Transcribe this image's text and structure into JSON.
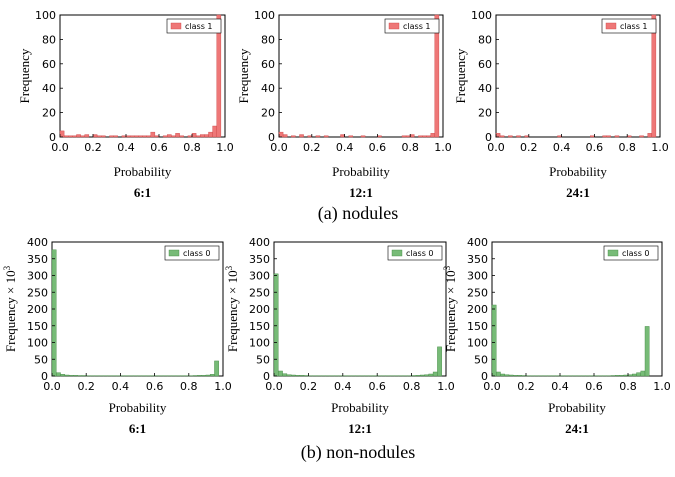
{
  "captions": {
    "top": "(a) nodules",
    "bottom": "(b) non-nodules"
  },
  "chart_data": [
    {
      "type": "bar",
      "group": "top",
      "title": "6:1",
      "xlabel": "Probability",
      "ylabel": "Frequency",
      "xlim": [
        0,
        1
      ],
      "ylim": [
        0,
        100
      ],
      "xticks": [
        "0.0",
        "0.2",
        "0.4",
        "0.6",
        "0.8",
        "1.0"
      ],
      "yticks": [
        "0",
        "20",
        "40",
        "60",
        "80",
        "100"
      ],
      "legend": "class 1",
      "legend_position": "top-right",
      "color": "#ee7777",
      "bins": 40,
      "values": [
        5,
        1,
        1,
        1,
        2,
        1,
        2,
        0,
        2,
        1,
        1,
        0,
        1,
        1,
        0,
        1,
        1,
        1,
        1,
        1,
        1,
        1,
        4,
        1,
        0,
        1,
        2,
        1,
        3,
        1,
        0,
        1,
        3,
        1,
        2,
        2,
        4,
        9,
        100,
        0
      ]
    },
    {
      "type": "bar",
      "group": "top",
      "title": "12:1",
      "xlabel": "Probability",
      "ylabel": "Frequency",
      "xlim": [
        0,
        1
      ],
      "ylim": [
        0,
        100
      ],
      "xticks": [
        "0.0",
        "0.2",
        "0.4",
        "0.6",
        "0.8",
        "1.0"
      ],
      "yticks": [
        "0",
        "20",
        "40",
        "60",
        "80",
        "100"
      ],
      "legend": "class 1",
      "legend_position": "top-right",
      "color": "#ee7777",
      "bins": 40,
      "values": [
        4,
        2,
        0,
        1,
        0,
        2,
        0,
        1,
        0,
        1,
        0,
        1,
        0,
        0,
        0,
        2,
        0,
        1,
        0,
        0,
        1,
        0,
        0,
        0,
        1,
        0,
        0,
        0,
        0,
        0,
        1,
        1,
        2,
        0,
        1,
        1,
        1,
        3,
        100,
        0
      ]
    },
    {
      "type": "bar",
      "group": "top",
      "title": "24:1",
      "xlabel": "Probability",
      "ylabel": "Frequency",
      "xlim": [
        0,
        1
      ],
      "ylim": [
        0,
        100
      ],
      "xticks": [
        "0.0",
        "0.2",
        "0.4",
        "0.6",
        "0.8",
        "1.0"
      ],
      "yticks": [
        "0",
        "20",
        "40",
        "60",
        "80",
        "100"
      ],
      "legend": "class 1",
      "legend_position": "top-right",
      "color": "#ee7777",
      "bins": 40,
      "values": [
        3,
        1,
        0,
        1,
        0,
        1,
        0,
        1,
        0,
        0,
        0,
        0,
        0,
        0,
        0,
        1,
        0,
        0,
        0,
        0,
        0,
        0,
        0,
        1,
        0,
        0,
        1,
        1,
        0,
        1,
        0,
        0,
        1,
        0,
        0,
        1,
        0,
        3,
        100,
        0
      ]
    },
    {
      "type": "bar",
      "group": "bottom",
      "title": "6:1",
      "xlabel": "Probability",
      "ylabel": "Frequency × 10^3",
      "xlim": [
        0,
        1
      ],
      "ylim": [
        0,
        400
      ],
      "xticks": [
        "0.0",
        "0.2",
        "0.4",
        "0.6",
        "0.8",
        "1.0"
      ],
      "yticks": [
        "0",
        "50",
        "100",
        "150",
        "200",
        "250",
        "300",
        "350",
        "400"
      ],
      "legend": "class 0",
      "legend_position": "top-right",
      "color": "#77bb77",
      "bins": 40,
      "values": [
        377,
        10,
        5,
        3,
        2,
        2,
        1.5,
        1.5,
        1,
        1,
        1,
        1,
        1,
        1,
        1,
        1,
        1,
        1,
        1,
        1,
        1,
        1,
        1,
        1,
        1,
        1,
        1,
        1,
        1,
        1,
        1,
        1,
        1,
        1.5,
        2,
        2,
        3,
        5,
        45,
        0
      ]
    },
    {
      "type": "bar",
      "group": "bottom",
      "title": "12:1",
      "xlabel": "Probability",
      "ylabel": "Frequency × 10^3",
      "xlim": [
        0,
        1
      ],
      "ylim": [
        0,
        400
      ],
      "xticks": [
        "0.0",
        "0.2",
        "0.4",
        "0.6",
        "0.8",
        "1.0"
      ],
      "yticks": [
        "0",
        "50",
        "100",
        "150",
        "200",
        "250",
        "300",
        "350",
        "400"
      ],
      "legend": "class 0",
      "legend_position": "top-right",
      "color": "#77bb77",
      "bins": 40,
      "values": [
        305,
        15,
        7,
        4,
        3,
        2,
        2,
        1.5,
        1,
        1,
        1,
        1,
        1,
        1,
        1,
        1,
        1,
        1,
        1,
        1,
        1,
        1,
        1,
        1,
        1,
        1,
        1,
        1,
        1,
        1,
        1,
        1,
        1.5,
        2,
        3,
        4,
        6,
        12,
        87,
        0
      ]
    },
    {
      "type": "bar",
      "group": "bottom",
      "title": "24:1",
      "xlabel": "Probability",
      "ylabel": "Frequency × 10^3",
      "xlim": [
        0,
        1
      ],
      "ylim": [
        0,
        400
      ],
      "xticks": [
        "0.0",
        "0.2",
        "0.4",
        "0.6",
        "0.8",
        "1.0"
      ],
      "yticks": [
        "0",
        "50",
        "100",
        "150",
        "200",
        "250",
        "300",
        "350",
        "400"
      ],
      "legend": "class 0",
      "legend_position": "top-right",
      "color": "#77bb77",
      "bins": 40,
      "values": [
        212,
        12,
        6,
        4,
        3,
        2,
        2,
        1.5,
        1,
        1,
        1,
        1,
        1,
        1,
        1,
        1,
        1,
        1,
        1,
        1,
        1,
        1,
        1,
        1,
        1,
        1,
        1,
        1,
        1.5,
        2,
        2,
        3,
        4,
        6,
        10,
        15,
        148,
        0,
        0,
        0
      ]
    }
  ]
}
